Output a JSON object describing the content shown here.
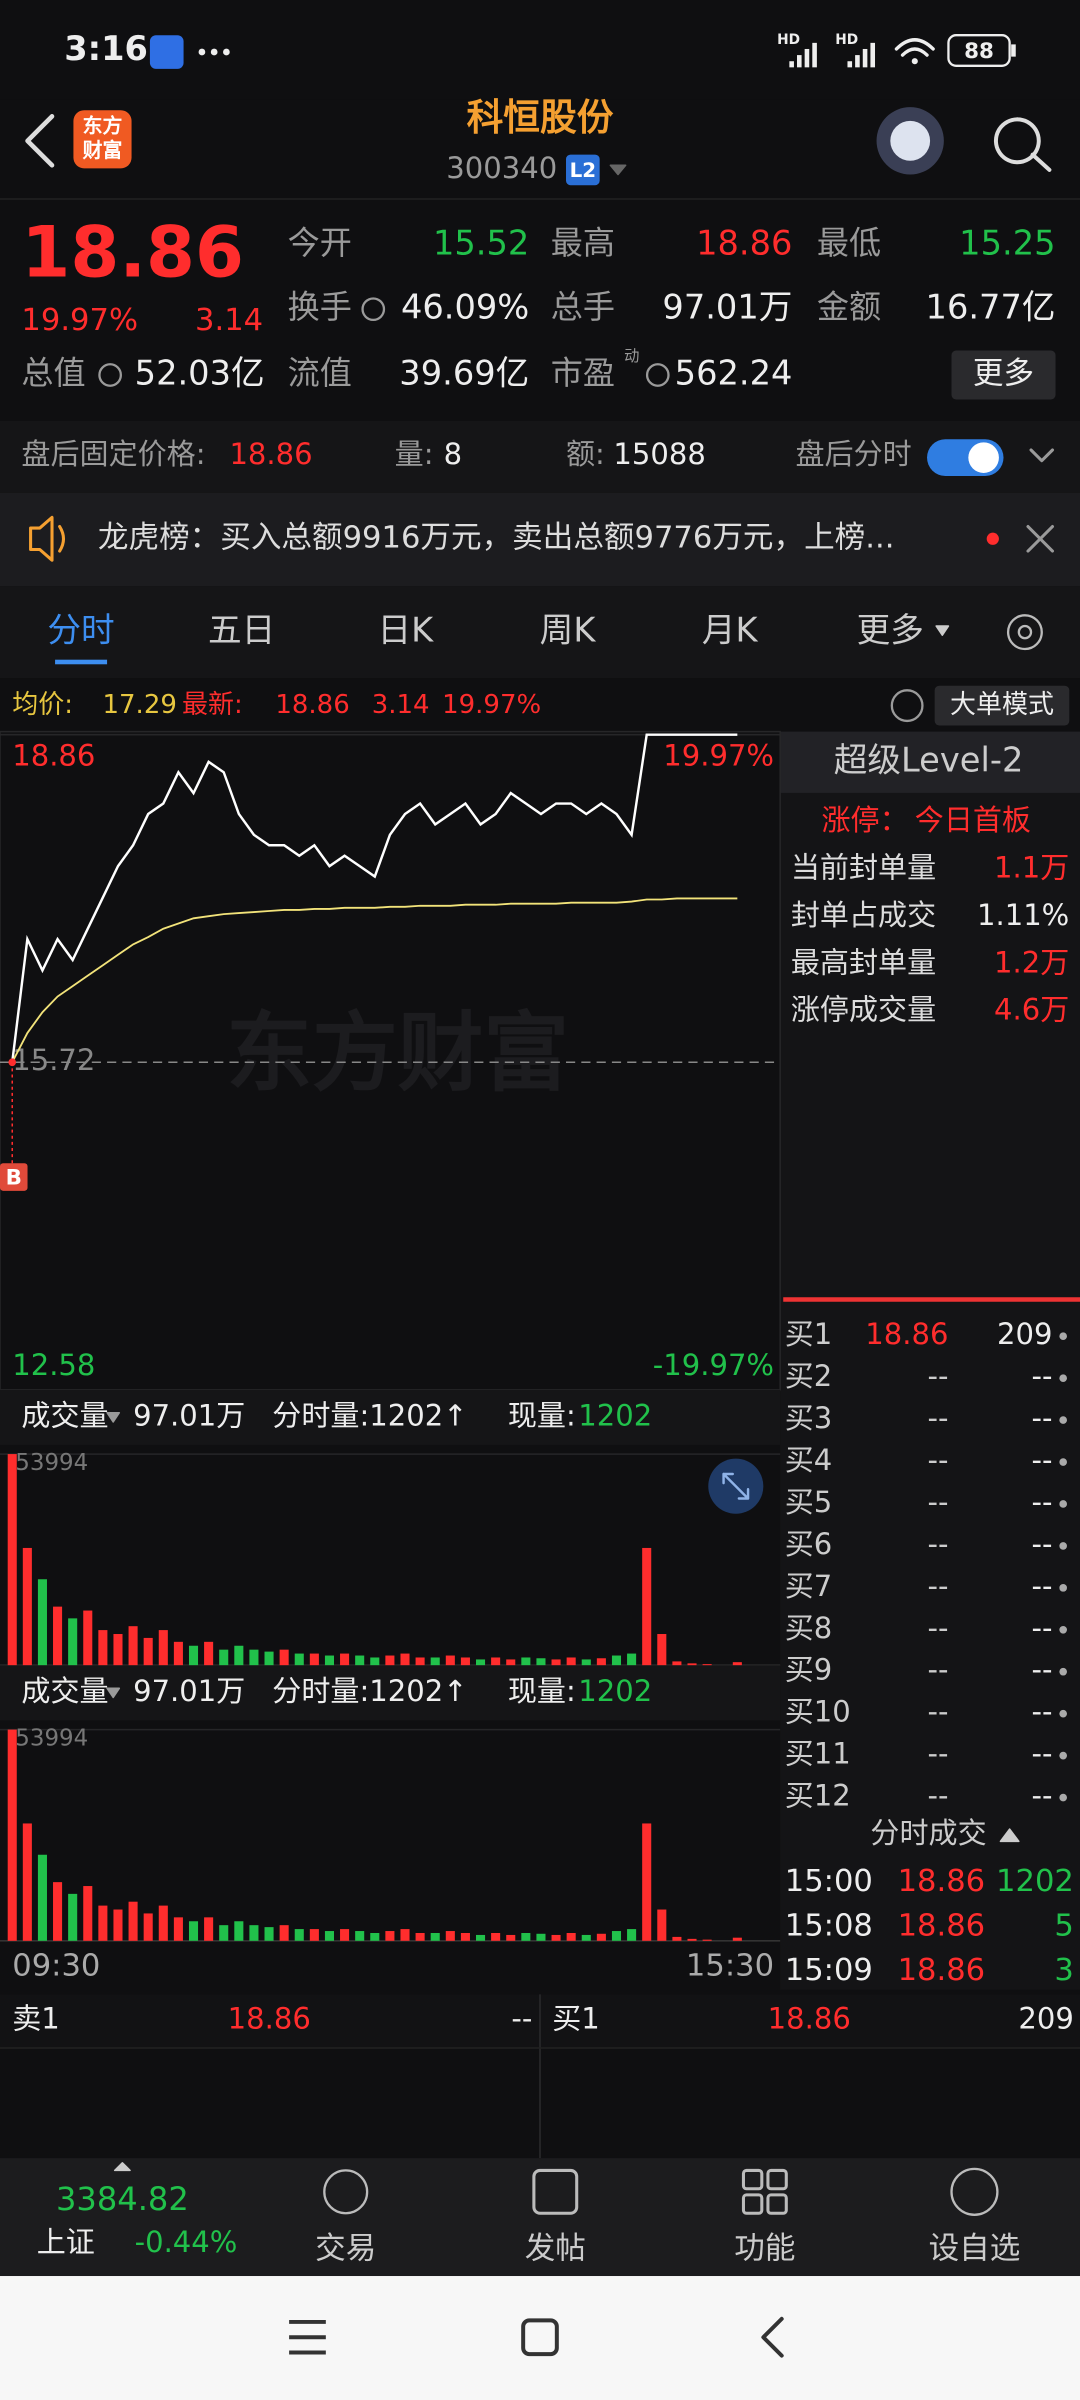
{
  "status_bar": {
    "time": "3:16",
    "network": [
      "HD",
      "HD"
    ],
    "battery": "88"
  },
  "header": {
    "logo": [
      "东方",
      "财富"
    ],
    "title": "科恒股份",
    "code": "300340",
    "badge": "L2"
  },
  "quote": {
    "price": "18.86",
    "pct": "19.97%",
    "change": "3.14",
    "fields": [
      {
        "label": "今开",
        "value": "15.52"
      },
      {
        "label": "最高",
        "value": "18.86"
      },
      {
        "label": "最低",
        "value": "15.25"
      },
      {
        "label": "换手",
        "value": "46.09%"
      },
      {
        "label": "总手",
        "value": "97.01万"
      },
      {
        "label": "金额",
        "value": "16.77亿"
      },
      {
        "label": "总值",
        "value": "52.03亿"
      },
      {
        "label": "流值",
        "value": "39.69亿"
      },
      {
        "label": "市盈",
        "value": "562.24",
        "superscript": "动"
      }
    ],
    "more": "更多"
  },
  "after_hours": {
    "price_label": "盘后固定价格:",
    "price": "18.86",
    "volume_label": "量:",
    "volume": "8",
    "amount_label": "额:",
    "amount": "15088",
    "toggle_label": "盘后分时"
  },
  "notice": {
    "text": "龙虎榜：买入总额9916万元，卖出总额9776万元，上榜..."
  },
  "tabs": [
    "分时",
    "五日",
    "日K",
    "周K",
    "月K",
    "更多"
  ],
  "chart_info": {
    "avg_label": "均价:",
    "avg": "17.29",
    "last_label": "最新:",
    "last": "18.86",
    "change": "3.14",
    "pct": "19.97%",
    "mode": "大单模式"
  },
  "chart_data": [
    {
      "type": "line",
      "ylim": [
        12.58,
        18.86
      ],
      "yticks": [
        18.86,
        15.72,
        12.58
      ],
      "y2lim": [
        -19.97,
        19.97
      ],
      "y2ticks": [
        {
          "value": 19.97,
          "label": "19.97%"
        },
        {
          "value": -19.97,
          "label": "-19.97%"
        }
      ],
      "grid": true,
      "marker": "B",
      "watermark": "东方财富",
      "series": [
        {
          "color": "#ffffff",
          "values": [
            15.72,
            16.9,
            16.6,
            16.9,
            16.7,
            17.0,
            17.3,
            17.6,
            17.8,
            18.1,
            18.2,
            18.5,
            18.3,
            18.6,
            18.5,
            18.1,
            17.9,
            17.8,
            17.8,
            17.7,
            17.8,
            17.6,
            17.7,
            17.6,
            17.5,
            17.9,
            18.1,
            18.2,
            18.0,
            18.1,
            18.2,
            18.0,
            18.1,
            18.3,
            18.2,
            18.1,
            18.2,
            18.2,
            18.1,
            18.2,
            18.1,
            17.9,
            18.86,
            18.86,
            18.86,
            18.86,
            18.86,
            18.86,
            18.86
          ]
        },
        {
          "color": "#f2e37a",
          "values": [
            15.72,
            16.0,
            16.2,
            16.35,
            16.45,
            16.55,
            16.65,
            16.75,
            16.85,
            16.92,
            17.0,
            17.05,
            17.1,
            17.12,
            17.14,
            17.15,
            17.16,
            17.17,
            17.18,
            17.18,
            17.19,
            17.19,
            17.2,
            17.2,
            17.2,
            17.21,
            17.21,
            17.22,
            17.22,
            17.22,
            17.23,
            17.23,
            17.23,
            17.24,
            17.24,
            17.24,
            17.24,
            17.25,
            17.25,
            17.25,
            17.25,
            17.26,
            17.28,
            17.28,
            17.29,
            17.29,
            17.29,
            17.29,
            17.29
          ]
        }
      ]
    },
    {
      "type": "bar",
      "header": {
        "label": "成交量",
        "total": "97.01万",
        "minute": "分时量:1202↑",
        "current_label": "现量:",
        "current": "1202"
      },
      "ylim": [
        0,
        53994
      ],
      "yticks": [
        53994
      ],
      "up_color": "#ff2d2d",
      "down_color": "#21c14b",
      "values": [
        53994,
        30000,
        22000,
        15000,
        12000,
        14000,
        9000,
        8000,
        10000,
        7000,
        9000,
        6000,
        5000,
        6000,
        4000,
        5000,
        4000,
        3500,
        4000,
        3000,
        3000,
        2500,
        3000,
        2500,
        2000,
        2500,
        3000,
        2000,
        2000,
        2500,
        2000,
        1500,
        2000,
        1500,
        2000,
        1800,
        1500,
        2000,
        1500,
        1800,
        2500,
        3000,
        30000,
        8000,
        1000,
        500,
        300,
        0,
        800
      ]
    },
    {
      "type": "bar",
      "header": {
        "label": "成交量",
        "total": "97.01万",
        "minute": "分时量:1202↑",
        "current_label": "现量:",
        "current": "1202"
      },
      "ylim": [
        0,
        53994
      ],
      "yticks": [
        53994
      ],
      "up_color": "#ff2d2d",
      "down_color": "#21c14b",
      "values": [
        53994,
        30000,
        22000,
        15000,
        12000,
        14000,
        9000,
        8000,
        10000,
        7000,
        9000,
        6000,
        5000,
        6000,
        4000,
        5000,
        4000,
        3500,
        4000,
        3000,
        3000,
        2500,
        3000,
        2500,
        2000,
        2500,
        3000,
        2000,
        2000,
        2500,
        2000,
        1500,
        2000,
        1500,
        2000,
        1800,
        1500,
        2000,
        1500,
        1800,
        2500,
        3000,
        30000,
        8000,
        1000,
        500,
        300,
        0,
        800
      ],
      "x_labels": [
        "09:30",
        "15:30"
      ]
    }
  ],
  "level2": {
    "title": "超级Level-2",
    "limit_label": "涨停：",
    "limit_value": "今日首板",
    "rows": [
      {
        "label": "当前封单量",
        "value": "1.1万"
      },
      {
        "label": "封单占成交",
        "value": "1.11%"
      },
      {
        "label": "最高封单量",
        "value": "1.2万"
      },
      {
        "label": "涨停成交量",
        "value": "4.6万"
      }
    ],
    "bids": [
      {
        "label": "买1",
        "price": "18.86",
        "volume": "209"
      },
      {
        "label": "买2",
        "price": "--",
        "volume": "--"
      },
      {
        "label": "买3",
        "price": "--",
        "volume": "--"
      },
      {
        "label": "买4",
        "price": "--",
        "volume": "--"
      },
      {
        "label": "买5",
        "price": "--",
        "volume": "--"
      },
      {
        "label": "买6",
        "price": "--",
        "volume": "--"
      },
      {
        "label": "买7",
        "price": "--",
        "volume": "--"
      },
      {
        "label": "买8",
        "price": "--",
        "volume": "--"
      },
      {
        "label": "买9",
        "price": "--",
        "volume": "--"
      },
      {
        "label": "买10",
        "price": "--",
        "volume": "--"
      },
      {
        "label": "买11",
        "price": "--",
        "volume": "--"
      },
      {
        "label": "买12",
        "price": "--",
        "volume": "--"
      }
    ],
    "trades_title": "分时成交",
    "trades": [
      {
        "time": "15:00",
        "price": "18.86",
        "volume": "1202"
      },
      {
        "time": "15:08",
        "price": "18.86",
        "volume": "5"
      },
      {
        "time": "15:09",
        "price": "18.86",
        "volume": "3"
      }
    ]
  },
  "depth_bar": {
    "ask_label": "卖1",
    "ask_price": "18.86",
    "ask_volume": "--",
    "bid_label": "买1",
    "bid_price": "18.86",
    "bid_volume": "209"
  },
  "index": {
    "value": "3384.82",
    "name": "上证",
    "change": "-0.44%"
  },
  "nav": [
    "交易",
    "发帖",
    "功能",
    "设自选"
  ]
}
